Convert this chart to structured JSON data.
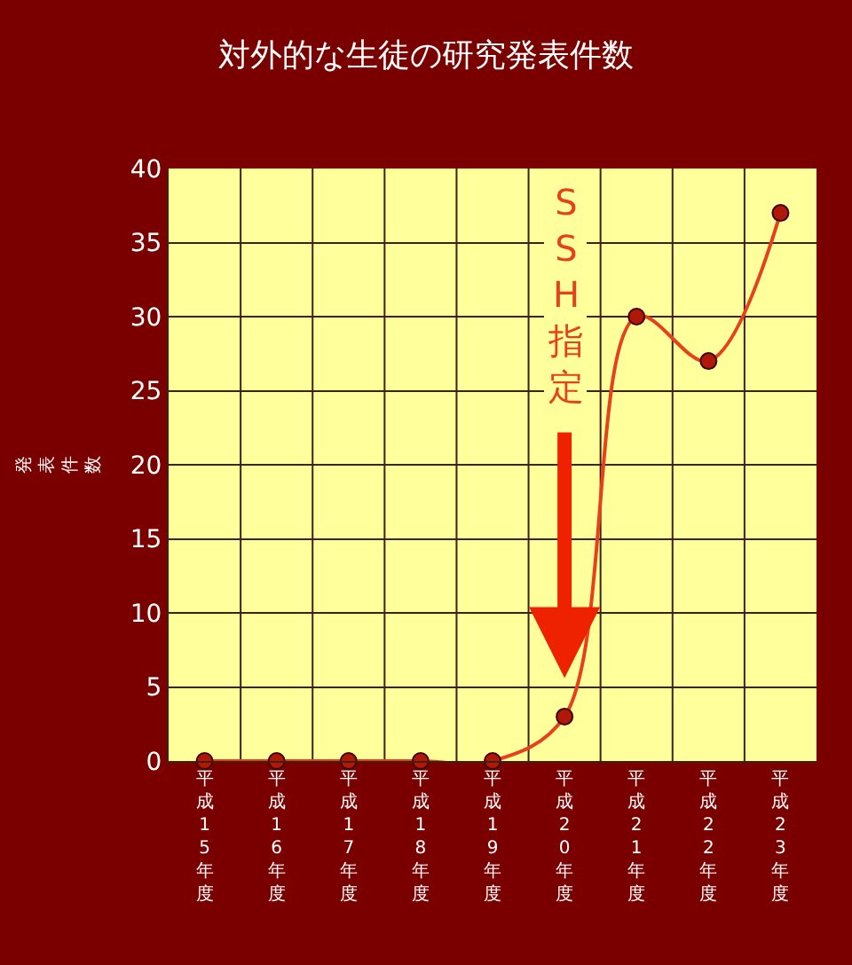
{
  "chart_data": {
    "type": "line",
    "title": "対外的な生徒の研究発表件数",
    "ylabel": "発表件数",
    "categories": [
      "平成15年度",
      "平成16年度",
      "平成17年度",
      "平成18年度",
      "平成19年度",
      "平成20年度",
      "平成21年度",
      "平成22年度",
      "平成23年度"
    ],
    "series": [
      {
        "color": "#e8401c",
        "values": [
          0,
          0,
          0,
          0,
          0,
          3,
          30,
          27,
          37
        ]
      }
    ],
    "ylim": [
      0,
      40
    ],
    "yticks": [
      0,
      5,
      10,
      15,
      20,
      25,
      30,
      35,
      40
    ],
    "grid": true,
    "marker": "circle",
    "line_style": "solid",
    "annotations": [
      "SSH指定"
    ]
  }
}
